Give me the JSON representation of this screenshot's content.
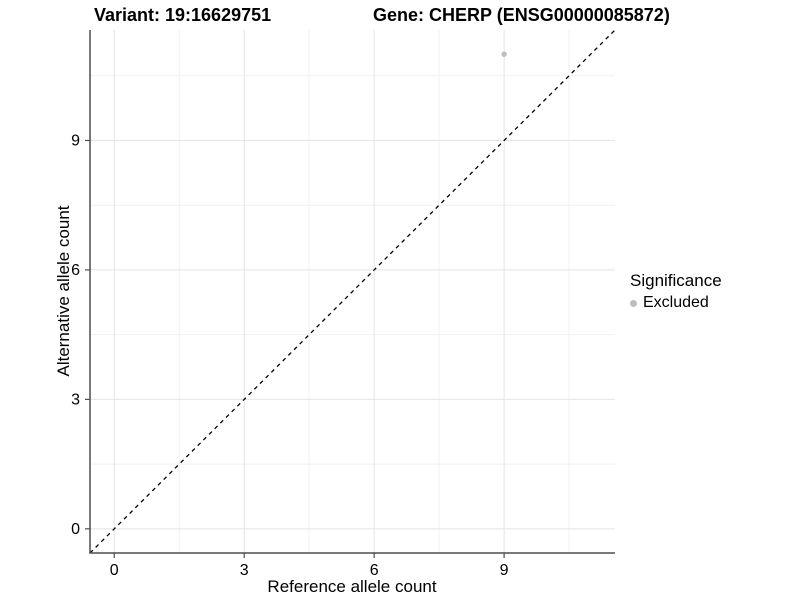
{
  "page": {
    "background": "#ffffff"
  },
  "chart_data": {
    "type": "scatter",
    "title_left": "Variant: 19:16629751",
    "title_right": "Gene: CHERP (ENSG00000085872)",
    "xlabel": "Reference allele count",
    "ylabel": "Alternative allele count",
    "xlim": [
      -0.56,
      11.56
    ],
    "ylim": [
      -0.56,
      11.56
    ],
    "x_major_ticks": [
      0,
      3,
      6,
      9
    ],
    "y_major_ticks": [
      0,
      3,
      6,
      9
    ],
    "x_minor_ticks": [
      1.5,
      4.5,
      7.5,
      10.5
    ],
    "y_minor_ticks": [
      1.5,
      4.5,
      7.5,
      10.5
    ],
    "grid": "major+minor",
    "series": [
      {
        "name": "Excluded",
        "marker": "circle",
        "color": "#bebebe",
        "points": [
          {
            "x": 9,
            "y": 11
          }
        ]
      }
    ],
    "reference_line": {
      "type": "abline",
      "slope": 1,
      "intercept": 0,
      "linestyle": "dashed",
      "color": "#000000"
    },
    "legend": {
      "title": "Significance",
      "position": "right",
      "items": [
        {
          "label": "Excluded",
          "color": "#bebebe"
        }
      ]
    }
  },
  "colors": {
    "background": "#ffffff",
    "grid_major": "#e4e4e4",
    "grid_minor": "#f1f1f1",
    "axis_line": "#4d4d4d",
    "tick_mark": "#4d4d4d",
    "tick_label": "#000000",
    "point": "#bebebe",
    "dashed_line": "#000000"
  }
}
